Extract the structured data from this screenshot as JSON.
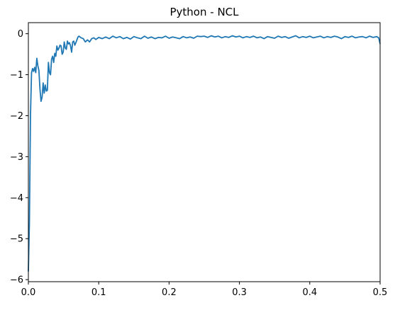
{
  "chart_data": {
    "type": "line",
    "title": "Python - NCL",
    "xlabel": "",
    "ylabel": "",
    "xlim": [
      0,
      0.5
    ],
    "ylim": [
      -6.05,
      0.27
    ],
    "xticks": [
      0.0,
      0.1,
      0.2,
      0.3,
      0.4,
      0.5
    ],
    "xtick_labels": [
      "0.0",
      "0.1",
      "0.2",
      "0.3",
      "0.4",
      "0.5"
    ],
    "yticks": [
      0,
      -1,
      -2,
      -3,
      -4,
      -5,
      -6
    ],
    "ytick_labels": [
      "0",
      "−1",
      "−2",
      "−3",
      "−4",
      "−5",
      "−6"
    ],
    "grid": false,
    "legend": false,
    "series": [
      {
        "color": "#1f77b4",
        "points": [
          [
            0.0,
            -5.8
          ],
          [
            0.0015,
            -4.6
          ],
          [
            0.003,
            -2.0
          ],
          [
            0.0045,
            -0.95
          ],
          [
            0.006,
            -0.85
          ],
          [
            0.0075,
            -0.92
          ],
          [
            0.009,
            -0.82
          ],
          [
            0.0105,
            -0.95
          ],
          [
            0.012,
            -0.6
          ],
          [
            0.0135,
            -0.78
          ],
          [
            0.015,
            -0.9
          ],
          [
            0.0165,
            -1.35
          ],
          [
            0.018,
            -1.65
          ],
          [
            0.0195,
            -1.55
          ],
          [
            0.021,
            -1.2
          ],
          [
            0.0225,
            -1.45
          ],
          [
            0.024,
            -1.25
          ],
          [
            0.0255,
            -1.4
          ],
          [
            0.027,
            -1.38
          ],
          [
            0.0285,
            -0.7
          ],
          [
            0.03,
            -0.95
          ],
          [
            0.0315,
            -1.0
          ],
          [
            0.033,
            -0.62
          ],
          [
            0.0345,
            -0.55
          ],
          [
            0.036,
            -0.7
          ],
          [
            0.0375,
            -0.48
          ],
          [
            0.039,
            -0.55
          ],
          [
            0.0405,
            -0.3
          ],
          [
            0.042,
            -0.4
          ],
          [
            0.0435,
            -0.35
          ],
          [
            0.045,
            -0.28
          ],
          [
            0.0465,
            -0.3
          ],
          [
            0.048,
            -0.5
          ],
          [
            0.0495,
            -0.45
          ],
          [
            0.051,
            -0.2
          ],
          [
            0.0525,
            -0.35
          ],
          [
            0.054,
            -0.38
          ],
          [
            0.0555,
            -0.18
          ],
          [
            0.057,
            -0.25
          ],
          [
            0.0585,
            -0.22
          ],
          [
            0.06,
            -0.3
          ],
          [
            0.0615,
            -0.45
          ],
          [
            0.063,
            -0.2
          ],
          [
            0.0645,
            -0.18
          ],
          [
            0.066,
            -0.28
          ],
          [
            0.0675,
            -0.22
          ],
          [
            0.069,
            -0.15
          ],
          [
            0.0705,
            -0.08
          ],
          [
            0.072,
            -0.06
          ],
          [
            0.075,
            -0.1
          ],
          [
            0.078,
            -0.12
          ],
          [
            0.081,
            -0.2
          ],
          [
            0.084,
            -0.15
          ],
          [
            0.087,
            -0.2
          ],
          [
            0.09,
            -0.12
          ],
          [
            0.093,
            -0.1
          ],
          [
            0.096,
            -0.14
          ],
          [
            0.1,
            -0.09
          ],
          [
            0.105,
            -0.12
          ],
          [
            0.11,
            -0.08
          ],
          [
            0.115,
            -0.12
          ],
          [
            0.12,
            -0.06
          ],
          [
            0.125,
            -0.1
          ],
          [
            0.13,
            -0.07
          ],
          [
            0.135,
            -0.12
          ],
          [
            0.14,
            -0.09
          ],
          [
            0.145,
            -0.13
          ],
          [
            0.15,
            -0.07
          ],
          [
            0.155,
            -0.1
          ],
          [
            0.16,
            -0.12
          ],
          [
            0.165,
            -0.06
          ],
          [
            0.17,
            -0.11
          ],
          [
            0.175,
            -0.08
          ],
          [
            0.18,
            -0.12
          ],
          [
            0.185,
            -0.09
          ],
          [
            0.19,
            -0.1
          ],
          [
            0.195,
            -0.06
          ],
          [
            0.2,
            -0.11
          ],
          [
            0.205,
            -0.08
          ],
          [
            0.21,
            -0.1
          ],
          [
            0.215,
            -0.12
          ],
          [
            0.22,
            -0.07
          ],
          [
            0.225,
            -0.1
          ],
          [
            0.23,
            -0.08
          ],
          [
            0.235,
            -0.11
          ],
          [
            0.24,
            -0.06
          ],
          [
            0.245,
            -0.07
          ],
          [
            0.25,
            -0.06
          ],
          [
            0.255,
            -0.09
          ],
          [
            0.26,
            -0.05
          ],
          [
            0.265,
            -0.08
          ],
          [
            0.27,
            -0.06
          ],
          [
            0.275,
            -0.1
          ],
          [
            0.28,
            -0.07
          ],
          [
            0.285,
            -0.09
          ],
          [
            0.29,
            -0.05
          ],
          [
            0.295,
            -0.08
          ],
          [
            0.3,
            -0.06
          ],
          [
            0.305,
            -0.1
          ],
          [
            0.31,
            -0.07
          ],
          [
            0.315,
            -0.09
          ],
          [
            0.32,
            -0.06
          ],
          [
            0.325,
            -0.1
          ],
          [
            0.33,
            -0.08
          ],
          [
            0.335,
            -0.12
          ],
          [
            0.34,
            -0.07
          ],
          [
            0.345,
            -0.09
          ],
          [
            0.35,
            -0.11
          ],
          [
            0.355,
            -0.06
          ],
          [
            0.36,
            -0.09
          ],
          [
            0.365,
            -0.07
          ],
          [
            0.37,
            -0.11
          ],
          [
            0.375,
            -0.08
          ],
          [
            0.38,
            -0.05
          ],
          [
            0.385,
            -0.1
          ],
          [
            0.39,
            -0.07
          ],
          [
            0.395,
            -0.09
          ],
          [
            0.4,
            -0.06
          ],
          [
            0.405,
            -0.1
          ],
          [
            0.41,
            -0.08
          ],
          [
            0.415,
            -0.06
          ],
          [
            0.42,
            -0.1
          ],
          [
            0.425,
            -0.07
          ],
          [
            0.43,
            -0.09
          ],
          [
            0.435,
            -0.06
          ],
          [
            0.44,
            -0.08
          ],
          [
            0.445,
            -0.12
          ],
          [
            0.45,
            -0.07
          ],
          [
            0.455,
            -0.09
          ],
          [
            0.46,
            -0.06
          ],
          [
            0.465,
            -0.1
          ],
          [
            0.47,
            -0.08
          ],
          [
            0.475,
            -0.07
          ],
          [
            0.48,
            -0.1
          ],
          [
            0.485,
            -0.06
          ],
          [
            0.49,
            -0.09
          ],
          [
            0.495,
            -0.07
          ],
          [
            0.498,
            -0.1
          ],
          [
            0.5,
            -0.25
          ]
        ]
      }
    ]
  }
}
